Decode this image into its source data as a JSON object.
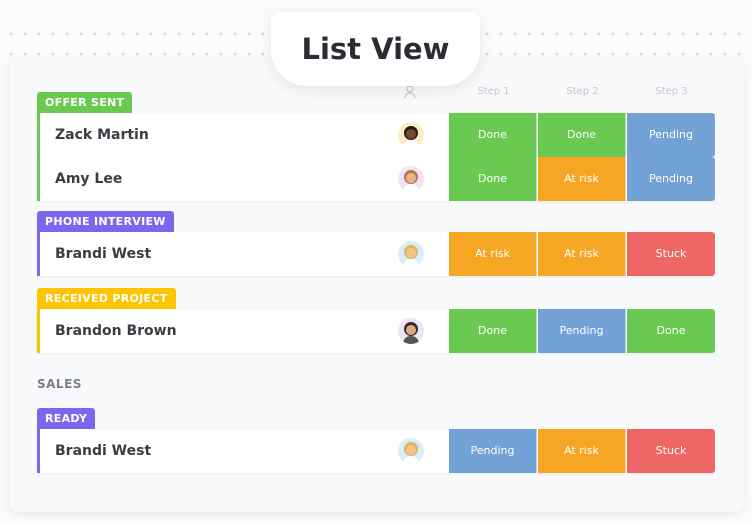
{
  "title": "List View",
  "columns": {
    "assignee_icon": "person-icon",
    "step1": "Step 1",
    "step2": "Step 2",
    "step3": "Step 3"
  },
  "status_colors": {
    "Done": "#6AC950",
    "At risk": "#F5A623",
    "Pending": "#73A2D6",
    "Stuck": "#EF6666"
  },
  "groups": [
    {
      "label": "OFFER SENT",
      "color": "#6AC950",
      "rows": [
        {
          "name": "Zack Martin",
          "steps": [
            "Done",
            "Done",
            "Pending"
          ]
        },
        {
          "name": "Amy Lee",
          "steps": [
            "Done",
            "At risk",
            "Pending"
          ]
        }
      ]
    },
    {
      "label": "PHONE INTERVIEW",
      "color": "#7B68EE",
      "rows": [
        {
          "name": "Brandi West",
          "steps": [
            "At risk",
            "At risk",
            "Stuck"
          ]
        }
      ]
    },
    {
      "label": "RECEIVED PROJECT",
      "color": "#FFC400",
      "rows": [
        {
          "name": "Brandon Brown",
          "steps": [
            "Done",
            "Pending",
            "Done"
          ]
        }
      ]
    }
  ],
  "sales": {
    "label": "SALES",
    "groups": [
      {
        "label": "READY",
        "color": "#7B68EE",
        "rows": [
          {
            "name": "Brandi West",
            "steps": [
              "Pending",
              "At risk",
              "Stuck"
            ]
          }
        ]
      }
    ]
  }
}
